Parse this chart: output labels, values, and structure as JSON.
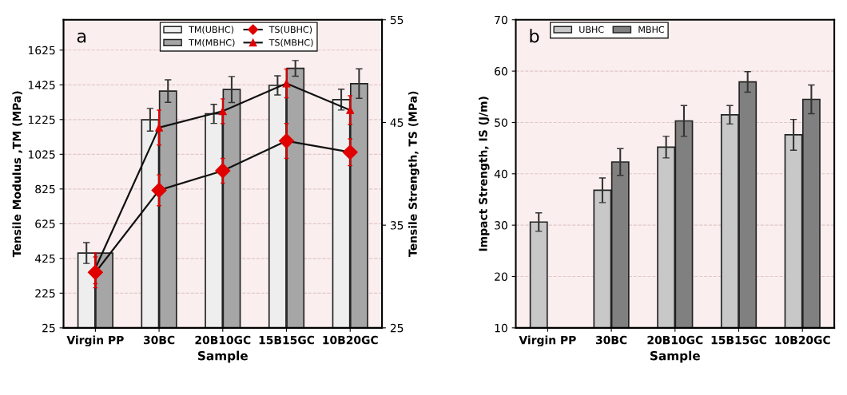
{
  "chart_data": [
    {
      "type": "bar",
      "annotations": [
        "a"
      ],
      "xlabel": "Sample",
      "ylabel": "Tensile Modulus ,TM (MPa)",
      "y2label": "Tensile Strength, TS (MPa)",
      "categories": [
        "Virgin PP",
        "30BC",
        "20B10GC",
        "15B15GC",
        "10B20GC"
      ],
      "ylim": [
        25,
        1800
      ],
      "yticks": [
        25,
        225,
        425,
        625,
        825,
        1025,
        1225,
        1425,
        1625
      ],
      "y2lim": [
        25,
        55
      ],
      "y2ticks": [
        25,
        35,
        45,
        55
      ],
      "grid": "y",
      "legend": "top",
      "series": [
        {
          "name": "TM(UBHC)",
          "color": "#eeeeee",
          "values": [
            456,
            1224,
            1258,
            1422,
            1340
          ],
          "errors": [
            60,
            65,
            55,
            55,
            60
          ]
        },
        {
          "name": "TM(MBHC)",
          "color": "#a6a6a6",
          "values": [
            456,
            1389,
            1398,
            1520,
            1432
          ],
          "errors": [
            null,
            65,
            75,
            45,
            85
          ]
        },
        {
          "name": "TS(UBHC)",
          "type": "line",
          "axis": "y2",
          "marker": "diamond",
          "color": "#e00000",
          "values": [
            30.4,
            38.4,
            40.3,
            43.2,
            42.1
          ],
          "errors": [
            1.5,
            1.5,
            1.2,
            1.7,
            1.3
          ]
        },
        {
          "name": "TS(MBHC)",
          "type": "line",
          "axis": "y2",
          "marker": "triangle",
          "color": "#e00000",
          "values": [
            30.8,
            44.5,
            46.1,
            48.8,
            46.2
          ],
          "errors": [
            1.5,
            1.7,
            1.2,
            1.4,
            1.4
          ]
        }
      ]
    },
    {
      "type": "bar",
      "annotations": [
        "b"
      ],
      "xlabel": "Sample",
      "ylabel": "Impact Strength, IS (J/m)",
      "categories": [
        "Virgin PP",
        "30BC",
        "20B10GC",
        "15B15GC",
        "10B20GC"
      ],
      "ylim": [
        10,
        70
      ],
      "yticks": [
        10,
        20,
        30,
        40,
        50,
        60,
        70
      ],
      "grid": "y",
      "legend": "top left",
      "series": [
        {
          "name": "UBHC",
          "color": "#c8c8c8",
          "values": [
            30.6,
            36.8,
            45.2,
            51.5,
            47.6
          ],
          "errors": [
            1.8,
            2.4,
            2.1,
            1.8,
            3.0
          ]
        },
        {
          "name": "MBHC",
          "color": "#808080",
          "values": [
            null,
            42.3,
            50.3,
            57.9,
            54.5
          ],
          "errors": [
            null,
            2.6,
            3.0,
            2.0,
            2.8
          ]
        }
      ]
    }
  ]
}
